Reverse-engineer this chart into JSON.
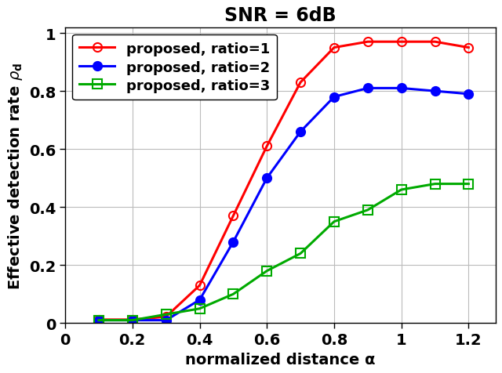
{
  "title": "SNR = 6dB",
  "xlabel": "normalized distance α",
  "ylabel_top": "Effective detection rate ρ",
  "ylabel_sub": "d",
  "xlim": [
    0,
    1.28
  ],
  "ylim": [
    0,
    1.02
  ],
  "xticks": [
    0,
    0.2,
    0.4,
    0.6,
    0.8,
    1.0,
    1.2
  ],
  "xticklabels": [
    "0",
    "0.2",
    "0.4",
    "0.6",
    "0.8",
    "1",
    "1.2"
  ],
  "yticks": [
    0,
    0.2,
    0.4,
    0.6,
    0.8,
    1.0
  ],
  "yticklabels": [
    "0",
    "0.2",
    "0.4",
    "0.6",
    "0.8",
    "1"
  ],
  "series": [
    {
      "label": "proposed, ratio=1",
      "color": "#ff0000",
      "marker": "o",
      "markerfacecolor": "none",
      "markeredgewidth": 1.5,
      "x": [
        0.1,
        0.2,
        0.3,
        0.4,
        0.5,
        0.6,
        0.7,
        0.8,
        0.9,
        1.0,
        1.1,
        1.2
      ],
      "y": [
        0.012,
        0.012,
        0.022,
        0.13,
        0.37,
        0.61,
        0.83,
        0.95,
        0.97,
        0.97,
        0.97,
        0.95
      ]
    },
    {
      "label": "proposed, ratio=2",
      "color": "#0000ff",
      "marker": "o",
      "markerfacecolor": "#0000ff",
      "markeredgewidth": 1.5,
      "x": [
        0.1,
        0.2,
        0.3,
        0.4,
        0.5,
        0.6,
        0.7,
        0.8,
        0.9,
        1.0,
        1.1,
        1.2
      ],
      "y": [
        0.01,
        0.01,
        0.01,
        0.08,
        0.28,
        0.5,
        0.66,
        0.78,
        0.81,
        0.81,
        0.8,
        0.79
      ]
    },
    {
      "label": "proposed, ratio=3",
      "color": "#00aa00",
      "marker": "s",
      "markerfacecolor": "none",
      "markeredgewidth": 1.5,
      "x": [
        0.1,
        0.2,
        0.3,
        0.4,
        0.5,
        0.6,
        0.7,
        0.8,
        0.9,
        1.0,
        1.1,
        1.2
      ],
      "y": [
        0.01,
        0.01,
        0.03,
        0.05,
        0.1,
        0.18,
        0.24,
        0.35,
        0.39,
        0.46,
        0.48,
        0.48
      ]
    }
  ],
  "background_color": "#ffffff",
  "grid_color": "#bbbbbb",
  "title_fontsize": 17,
  "label_fontsize": 14,
  "tick_fontsize": 14,
  "legend_fontsize": 13,
  "linewidth": 2.2,
  "markersize": 8
}
